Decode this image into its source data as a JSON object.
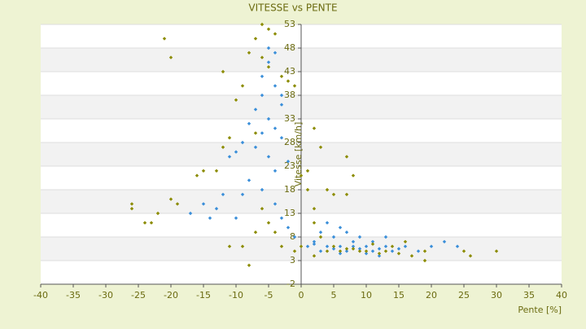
{
  "chart_data": {
    "type": "scatter",
    "title": "VITESSE vs PENTE",
    "xlabel": "Pente [%]",
    "ylabel": "Vitesse [km/h]",
    "xlim": [
      -40,
      40
    ],
    "xticks": [
      -40,
      -35,
      -30,
      -25,
      -20,
      -15,
      -10,
      -5,
      0,
      5,
      10,
      15,
      20,
      25,
      30,
      35,
      40
    ],
    "ylim": [
      -2,
      53
    ],
    "yticks": [
      -2,
      3,
      8,
      13,
      18,
      23,
      28,
      33,
      38,
      43,
      48,
      53
    ],
    "grid": true,
    "series": [
      {
        "color": "#3b8fd9",
        "x": [
          -5,
          -4,
          -6,
          -7,
          -5,
          -4,
          -3,
          -6,
          -8,
          -9,
          -10,
          -11,
          -7,
          -5,
          -4,
          -3,
          -2,
          -6,
          -5,
          -4,
          -3,
          -12,
          -15,
          -17,
          -13,
          -10,
          -9,
          -14,
          -8,
          -6,
          -4,
          -3,
          -2,
          -1,
          1,
          2,
          3,
          4,
          5,
          6,
          7,
          8,
          9,
          10,
          11,
          12,
          13,
          14,
          15,
          16,
          18,
          20,
          22,
          24,
          3,
          5,
          7,
          9,
          11,
          13,
          4,
          6,
          8,
          2,
          10,
          12,
          6
        ],
        "values": [
          45,
          40,
          38,
          35,
          33,
          31,
          36,
          30,
          32,
          28,
          26,
          25,
          27,
          25,
          22,
          29,
          24,
          42,
          48,
          47,
          38,
          17,
          15,
          13,
          14,
          12,
          17,
          12,
          20,
          18,
          15,
          12,
          10,
          8,
          6,
          6.5,
          5,
          6,
          5.5,
          6,
          5,
          6,
          5.5,
          6,
          5,
          5.5,
          6,
          5,
          5.5,
          6,
          5,
          6,
          7,
          6,
          9,
          8,
          9,
          8,
          7,
          8,
          11,
          10,
          7,
          7,
          4.5,
          4,
          4.5
        ]
      },
      {
        "color": "#8c8c00",
        "x": [
          -6,
          -5,
          -7,
          -4,
          -8,
          -6,
          -5,
          -3,
          -21,
          -20,
          -12,
          -9,
          -10,
          -2,
          -1,
          -7,
          -11,
          -12,
          -13,
          -16,
          -15,
          -20,
          -19,
          -22,
          -24,
          -26,
          -26,
          -23,
          -6,
          -5,
          -4,
          -7,
          -9,
          -11,
          -3,
          -8,
          0,
          1,
          2,
          3,
          4,
          5,
          7,
          8,
          7,
          1,
          2,
          2,
          3,
          5,
          7,
          9,
          11,
          13,
          15,
          17,
          19,
          19,
          26,
          30,
          25,
          -1,
          0,
          2,
          4,
          6,
          8,
          10,
          12,
          14,
          16
        ],
        "values": [
          53,
          52,
          50,
          51,
          47,
          46,
          44,
          42,
          50,
          46,
          43,
          40,
          37,
          41,
          40,
          30,
          29,
          27,
          22,
          21,
          22,
          16,
          15,
          13,
          11,
          15,
          14,
          11,
          14,
          11,
          9,
          9,
          6,
          6,
          6,
          2,
          21,
          18,
          31,
          27,
          18,
          17,
          25,
          21,
          17,
          22,
          14,
          11,
          8,
          6,
          5.5,
          5,
          6.5,
          5,
          4.5,
          4,
          5,
          3,
          4,
          5,
          5,
          5,
          6,
          4,
          5,
          5,
          5.5,
          5,
          4.5,
          6,
          7
        ]
      }
    ]
  }
}
